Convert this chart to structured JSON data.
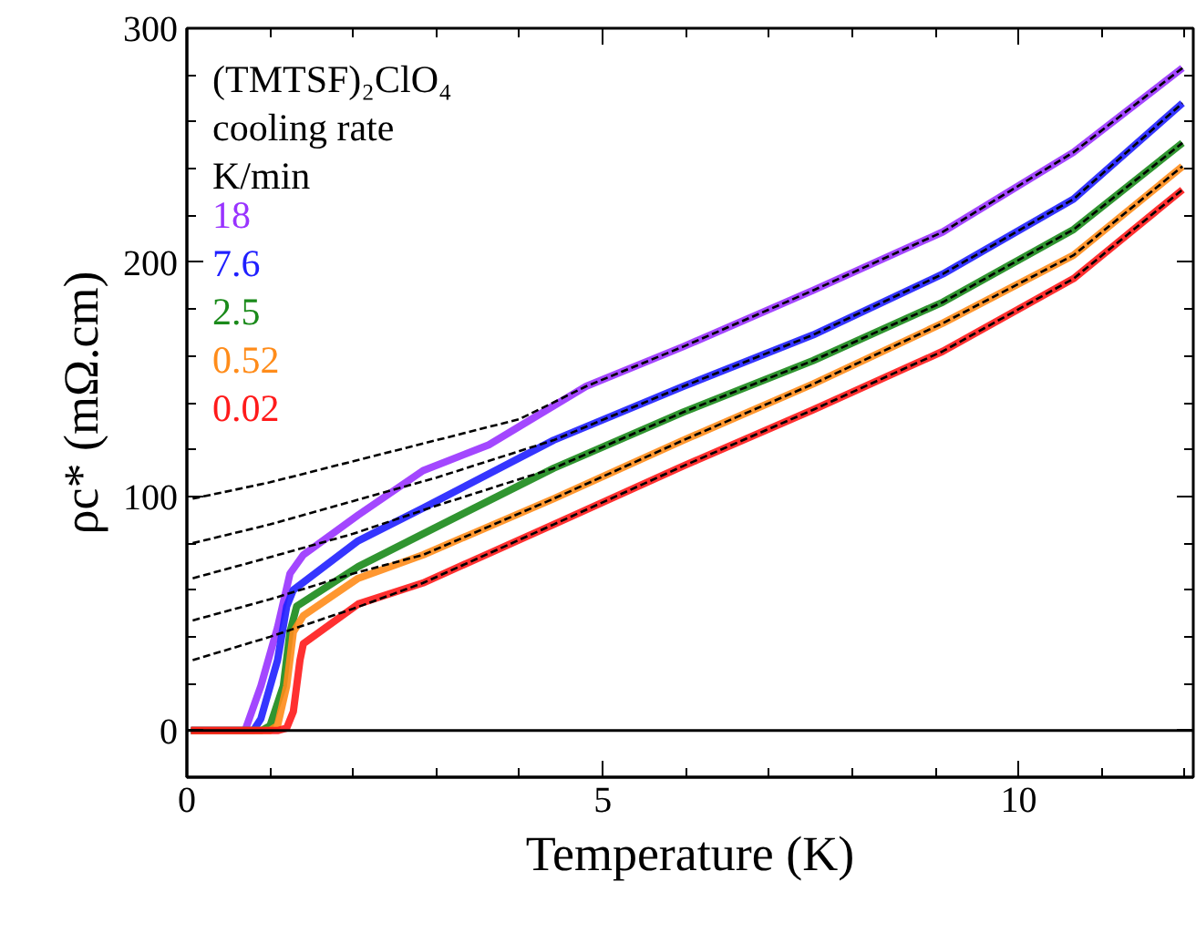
{
  "chart_data": {
    "type": "line",
    "xlabel": "Temperature (K)",
    "ylabel": "ρc* (mΩ.cm)",
    "annotations": [
      "(TMTSF)₂ClO₄",
      "cooling rate",
      "K/min"
    ],
    "xlim": [
      0,
      12.1
    ],
    "ylim": [
      -20,
      300
    ],
    "xticks": [
      0,
      5,
      10,
      {
        "value": 1,
        "label": null
      },
      {
        "value": 2,
        "label": null
      },
      {
        "value": 3,
        "label": null
      },
      {
        "value": 4,
        "label": null
      },
      {
        "value": 6,
        "label": null
      },
      {
        "value": 7,
        "label": null
      },
      {
        "value": 8,
        "label": null
      },
      {
        "value": 9,
        "label": null
      },
      {
        "value": 11,
        "label": null
      },
      {
        "value": 12,
        "label": null
      }
    ],
    "yticks": [
      0,
      100,
      200,
      300,
      {
        "value": 20,
        "label": null
      },
      {
        "value": 40,
        "label": null
      },
      {
        "value": 60,
        "label": null
      },
      {
        "value": 80,
        "label": null
      },
      {
        "value": 120,
        "label": null
      },
      {
        "value": 140,
        "label": null
      },
      {
        "value": 160,
        "label": null
      },
      {
        "value": 180,
        "label": null
      },
      {
        "value": 220,
        "label": null
      },
      {
        "value": 240,
        "label": null
      },
      {
        "value": 260,
        "label": null
      },
      {
        "value": 280,
        "label": null
      }
    ],
    "grid": false,
    "marker": "none",
    "line_style": "solid",
    "ref_lines": [
      {
        "axis": "y",
        "value": 0,
        "color": "#000000"
      }
    ],
    "series": [
      {
        "name": "18",
        "color": "#9933ff",
        "x": [
          0.05,
          0.4,
          0.7,
          0.89,
          1.09,
          1.24,
          1.4,
          2.06,
          2.84,
          3.63,
          4.8,
          5.97,
          7.53,
          9.09,
          10.66,
          11.97
        ],
        "values": [
          0,
          0,
          0,
          19,
          44,
          67,
          75,
          92,
          111,
          122,
          147,
          164,
          188,
          213,
          247,
          283
        ]
      },
      {
        "name": "7.6",
        "color": "#1f1fff",
        "x": [
          0.05,
          0.5,
          0.8,
          0.89,
          1.09,
          1.2,
          1.28,
          2.06,
          2.84,
          4.41,
          5.97,
          7.53,
          9.09,
          10.66,
          11.97
        ],
        "values": [
          0,
          0,
          0,
          5,
          30,
          53,
          60,
          81,
          95,
          124,
          147,
          169,
          195,
          227,
          268
        ]
      },
      {
        "name": "2.5",
        "color": "#1a8a1a",
        "x": [
          0.05,
          0.6,
          0.9,
          1.0,
          1.16,
          1.24,
          1.32,
          2.06,
          2.84,
          4.41,
          5.97,
          7.53,
          9.09,
          10.66,
          11.97
        ],
        "values": [
          0,
          0,
          0,
          2,
          19,
          42,
          53,
          70,
          84,
          112,
          136,
          158,
          183,
          214,
          251
        ]
      },
      {
        "name": "0.52",
        "color": "#ff8c1a",
        "x": [
          0.05,
          0.7,
          1.0,
          1.09,
          1.2,
          1.28,
          1.4,
          2.06,
          2.84,
          4.41,
          5.97,
          7.53,
          9.09,
          10.66,
          11.97
        ],
        "values": [
          0,
          0,
          0,
          2,
          19,
          42,
          49,
          65,
          75,
          99,
          124,
          148,
          174,
          203,
          241
        ]
      },
      {
        "name": "0.02",
        "color": "#ff1a1a",
        "x": [
          0.05,
          0.8,
          1.1,
          1.2,
          1.28,
          1.36,
          1.4,
          2.06,
          2.84,
          4.41,
          5.97,
          7.53,
          9.09,
          10.66,
          11.97
        ],
        "values": [
          0,
          0,
          0,
          1,
          8,
          30,
          37,
          54,
          63,
          88,
          113,
          137,
          162,
          193,
          231
        ]
      },
      {
        "color": "#000000",
        "line_style": "dashed",
        "x": [
          0.07,
          1,
          2,
          3,
          4,
          4.8,
          5.97,
          7.53,
          9.09,
          10.66,
          11.97
        ],
        "values": [
          99,
          106,
          115,
          124,
          133,
          147,
          164,
          188,
          213,
          247,
          283
        ]
      },
      {
        "color": "#000000",
        "line_style": "dashed",
        "x": [
          0.07,
          1,
          2,
          3,
          4.41,
          5.97,
          7.53,
          9.09,
          10.66,
          11.97
        ],
        "values": [
          80,
          88,
          98,
          108,
          124,
          147,
          169,
          195,
          227,
          268
        ]
      },
      {
        "color": "#000000",
        "line_style": "dashed",
        "x": [
          0.07,
          1,
          2,
          3,
          4.41,
          5.97,
          7.53,
          9.09,
          10.66,
          11.97
        ],
        "values": [
          65,
          74,
          84,
          96,
          112,
          136,
          158,
          183,
          214,
          251
        ]
      },
      {
        "color": "#000000",
        "line_style": "dashed",
        "x": [
          0.07,
          1,
          2,
          2.84,
          4.41,
          5.97,
          7.53,
          9.09,
          10.66,
          11.97
        ],
        "values": [
          47,
          56,
          67,
          75,
          99,
          124,
          148,
          174,
          203,
          241
        ]
      },
      {
        "color": "#000000",
        "line_style": "dashed",
        "x": [
          0.07,
          1,
          2,
          2.84,
          4.41,
          5.97,
          7.53,
          9.09,
          10.66,
          11.97
        ],
        "values": [
          30,
          40,
          52,
          63,
          88,
          113,
          137,
          162,
          193,
          231
        ]
      }
    ]
  }
}
